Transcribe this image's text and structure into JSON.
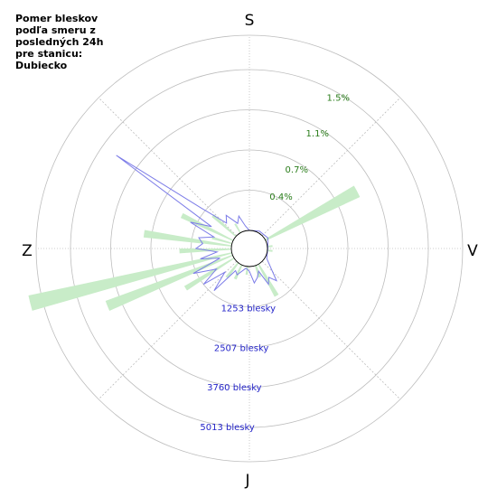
{
  "chart_data": {
    "type": "polar",
    "title": "Pomer bleskov\npodľa smeru z\nposledných 24h\npre stanicu:\nDubiecko",
    "directions": {
      "top": "S",
      "right": "V",
      "bottom": "J",
      "left": "Z"
    },
    "percent_ticks": [
      {
        "label": "0.4%",
        "value": 0.4
      },
      {
        "label": "0.7%",
        "value": 0.7
      },
      {
        "label": "1.1%",
        "value": 1.1
      },
      {
        "label": "1.5%",
        "value": 1.5
      }
    ],
    "count_ticks": [
      {
        "label": "1253 blesky",
        "value": 1253
      },
      {
        "label": "2507 blesky",
        "value": 2507
      },
      {
        "label": "3760 blesky",
        "value": 3760
      },
      {
        "label": "5013 blesky",
        "value": 5013
      }
    ],
    "colors": {
      "percent_bars": "#c8ecc8",
      "count_line": "#7d7de8",
      "percent_labels": "#2a7d1b",
      "count_labels": "#2525c9"
    },
    "percent_bars": [
      {
        "azimuth_deg": 62,
        "width_deg": 6,
        "value": 1.0
      },
      {
        "azimuth_deg": 84,
        "width_deg": 5,
        "value": 0.05
      },
      {
        "azimuth_deg": 96,
        "width_deg": 5,
        "value": 0.05
      },
      {
        "azimuth_deg": 150,
        "width_deg": 5,
        "value": 0.35
      },
      {
        "azimuth_deg": 160,
        "width_deg": 6,
        "value": 0.12
      },
      {
        "azimuth_deg": 186,
        "width_deg": 5,
        "value": 0.08
      },
      {
        "azimuth_deg": 205,
        "width_deg": 5,
        "value": 0.15
      },
      {
        "azimuth_deg": 218,
        "width_deg": 5,
        "value": 0.18
      },
      {
        "azimuth_deg": 238,
        "width_deg": 4,
        "value": 0.55
      },
      {
        "azimuth_deg": 248,
        "width_deg": 4,
        "value": 1.3
      },
      {
        "azimuth_deg": 256,
        "width_deg": 4,
        "value": 2.0
      },
      {
        "azimuth_deg": 268,
        "width_deg": 4,
        "value": 0.5
      },
      {
        "azimuth_deg": 278,
        "width_deg": 4,
        "value": 0.85
      },
      {
        "azimuth_deg": 286,
        "width_deg": 4,
        "value": 0.2
      },
      {
        "azimuth_deg": 296,
        "width_deg": 4,
        "value": 0.55
      },
      {
        "azimuth_deg": 312,
        "width_deg": 4,
        "value": 0.3
      },
      {
        "azimuth_deg": 330,
        "width_deg": 4,
        "value": 0.1
      }
    ],
    "count_profile": [
      {
        "azimuth_deg": 0,
        "value": 0
      },
      {
        "azimuth_deg": 30,
        "value": 60
      },
      {
        "azimuth_deg": 60,
        "value": 100
      },
      {
        "azimuth_deg": 90,
        "value": 10
      },
      {
        "azimuth_deg": 120,
        "value": 60
      },
      {
        "azimuth_deg": 140,
        "value": 750
      },
      {
        "azimuth_deg": 146,
        "value": 520
      },
      {
        "azimuth_deg": 152,
        "value": 700
      },
      {
        "azimuth_deg": 158,
        "value": 200
      },
      {
        "azimuth_deg": 165,
        "value": 380
      },
      {
        "azimuth_deg": 172,
        "value": 520
      },
      {
        "azimuth_deg": 180,
        "value": 150
      },
      {
        "azimuth_deg": 190,
        "value": 60
      },
      {
        "azimuth_deg": 205,
        "value": 340
      },
      {
        "azimuth_deg": 212,
        "value": 250
      },
      {
        "azimuth_deg": 220,
        "value": 1150
      },
      {
        "azimuth_deg": 226,
        "value": 500
      },
      {
        "azimuth_deg": 232,
        "value": 1250
      },
      {
        "azimuth_deg": 238,
        "value": 650
      },
      {
        "azimuth_deg": 246,
        "value": 1350
      },
      {
        "azimuth_deg": 252,
        "value": 400
      },
      {
        "azimuth_deg": 258,
        "value": 1000
      },
      {
        "azimuth_deg": 264,
        "value": 450
      },
      {
        "azimuth_deg": 270,
        "value": 1100
      },
      {
        "azimuth_deg": 276,
        "value": 900
      },
      {
        "azimuth_deg": 282,
        "value": 1050
      },
      {
        "azimuth_deg": 288,
        "value": 600
      },
      {
        "azimuth_deg": 294,
        "value": 1450
      },
      {
        "azimuth_deg": 300,
        "value": 800
      },
      {
        "azimuth_deg": 305,
        "value": 4500
      },
      {
        "azimuth_deg": 310,
        "value": 1400
      },
      {
        "azimuth_deg": 318,
        "value": 500
      },
      {
        "azimuth_deg": 325,
        "value": 700
      },
      {
        "azimuth_deg": 335,
        "value": 300
      },
      {
        "azimuth_deg": 342,
        "value": 500
      },
      {
        "azimuth_deg": 350,
        "value": 150
      }
    ]
  }
}
